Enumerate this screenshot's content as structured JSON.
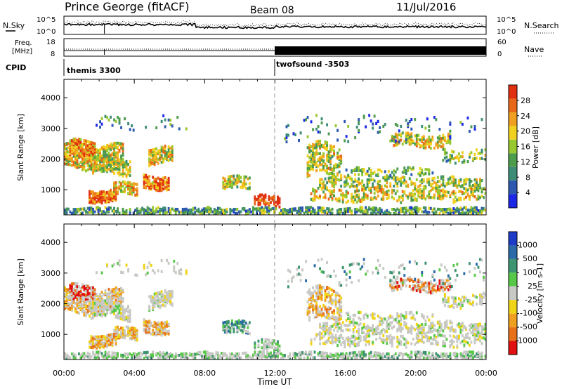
{
  "header": {
    "title": "Prince George (fitACF)",
    "beam": "Beam 08",
    "date": "11/Jul/2016"
  },
  "time_axis": {
    "label": "Time UT",
    "ticks": [
      "00:00",
      "04:00",
      "08:00",
      "12:00",
      "16:00",
      "20:00",
      "00:00"
    ],
    "range_hours": [
      0,
      24
    ]
  },
  "noise_panel": {
    "left_label": "N.Sky",
    "right_label": "N.Search",
    "left_ticks": [
      "10^5",
      "10^0"
    ],
    "right_ticks": [
      "10^5",
      "10^0"
    ]
  },
  "freq_panel": {
    "left_label_top": "Freq.",
    "left_label_bottom": "[MHz]",
    "left_ticks": [
      "18",
      "8"
    ],
    "right_label": "Nave",
    "right_ticks": [
      "60",
      "0"
    ]
  },
  "cpid_panel": {
    "label": "CPID",
    "programs": [
      {
        "name": "themis 3300",
        "start_hour": 0.0
      },
      {
        "name": "twofsound -3503",
        "start_hour": 12.0
      }
    ]
  },
  "chart_data": [
    {
      "type": "heatmap",
      "ylabel": "Slant Range [km]",
      "xlabel": "Time UT",
      "y_ticks": [
        1000,
        2000,
        3000,
        4000
      ],
      "ylim": [
        180,
        4600
      ],
      "xlim_hours": [
        0,
        24
      ],
      "colorbar": {
        "label": "Power [dB]",
        "ticks": [
          "4",
          "8",
          "12",
          "16",
          "20",
          "24",
          "28"
        ],
        "range": [
          0,
          30
        ],
        "colors": [
          "#1c28e6",
          "#2c58b0",
          "#3c8c78",
          "#4c9c4c",
          "#98c830",
          "#f0d020",
          "#f0a020",
          "#e86818",
          "#e03010"
        ]
      }
    },
    {
      "type": "heatmap",
      "ylabel": "Slant Range [km]",
      "xlabel": "Time UT",
      "y_ticks": [
        1000,
        2000,
        3000,
        4000
      ],
      "ylim": [
        180,
        4600
      ],
      "xlim_hours": [
        0,
        24
      ],
      "colorbar": {
        "label": "Velocity [m s-1]",
        "ticks": [
          "1000",
          "500",
          "100",
          "25",
          "-25",
          "-100",
          "-500",
          "-1000"
        ],
        "colors": [
          "#1c3cc8",
          "#2a6aa8",
          "#3c9470",
          "#58c848",
          "#c8c8c4",
          "#f0d418",
          "#f0a020",
          "#e87018",
          "#e01010"
        ]
      }
    }
  ]
}
